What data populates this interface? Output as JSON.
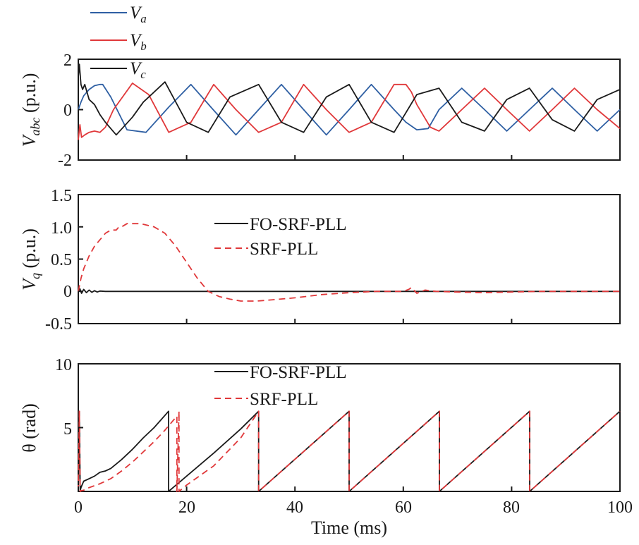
{
  "chart_data": [
    {
      "type": "line",
      "ylabel": "V_abc (p.u.)",
      "ylabel_main": "V",
      "ylabel_sub": "abc",
      "ylabel_unit": " (p.u.)",
      "xlim": [
        0,
        100
      ],
      "ylim": [
        -2,
        2
      ],
      "yticks": [
        "-2",
        "0",
        "2"
      ],
      "grid": false,
      "legend_position": "top-left",
      "series": [
        {
          "name": "V_a",
          "name_main": "V",
          "name_sub": "a",
          "color": "#2e5fa3",
          "x": [
            0,
            0.5,
            1,
            2,
            3,
            4,
            4.5,
            6,
            9,
            12.5,
            16.7,
            20.8,
            24.9,
            29.1,
            33.3,
            37.5,
            41.6,
            45.8,
            50,
            54.1,
            58.3,
            60.5,
            62.5,
            64.6,
            66.6,
            70.8,
            75,
            79.1,
            83.3,
            87.5,
            91.6,
            95.8,
            100
          ],
          "y": [
            0,
            0.3,
            0.55,
            0.8,
            0.95,
            1.0,
            1.0,
            0.5,
            -0.8,
            -0.9,
            0.1,
            1.0,
            0.0,
            -1.0,
            0.0,
            1.0,
            0.0,
            -1.0,
            0.0,
            1.0,
            0.0,
            -0.5,
            -0.8,
            -0.75,
            0.0,
            0.85,
            0.0,
            -0.85,
            0.0,
            0.85,
            0.0,
            -0.85,
            0.0
          ]
        },
        {
          "name": "V_b",
          "name_main": "V",
          "name_sub": "b",
          "color": "#e0383a",
          "x": [
            0,
            0.3,
            0.6,
            1.2,
            2,
            3,
            4,
            5,
            6.5,
            10,
            13,
            16.7,
            20.8,
            25,
            29.1,
            33.3,
            37.5,
            41.6,
            45.8,
            50,
            54.1,
            58.3,
            60.5,
            61.5,
            62.5,
            65,
            66.6,
            70.8,
            75,
            79.1,
            83.3,
            87.5,
            91.6,
            95.8,
            100
          ],
          "y": [
            -1.2,
            -0.6,
            -1.1,
            -1.0,
            -0.9,
            -0.85,
            -0.9,
            -0.7,
            0.0,
            1.05,
            0.6,
            -0.9,
            -0.5,
            1.0,
            0.0,
            -0.9,
            -0.5,
            1.0,
            0.0,
            -0.9,
            -0.5,
            1.0,
            1.0,
            0.7,
            0.2,
            -0.7,
            -0.85,
            0.0,
            0.85,
            0.0,
            -0.85,
            0.0,
            0.85,
            0.0,
            -0.75
          ]
        },
        {
          "name": "V_c",
          "name_main": "V",
          "name_sub": "c",
          "color": "#1a1a1a",
          "x": [
            0,
            0.2,
            0.5,
            0.8,
            1.2,
            2,
            3,
            4,
            5,
            7,
            10,
            12,
            16,
            20,
            24,
            28,
            33.3,
            37.5,
            41.6,
            45.8,
            50,
            54.1,
            58.3,
            62.5,
            66.6,
            70.8,
            75,
            79.1,
            83.3,
            87.5,
            91.6,
            95.8,
            100
          ],
          "y": [
            1.3,
            1.8,
            1.0,
            0.8,
            1.0,
            0.4,
            0.2,
            -0.2,
            -0.5,
            -1.0,
            -0.3,
            0.3,
            1.1,
            -0.5,
            -0.9,
            0.5,
            1.0,
            -0.5,
            -0.9,
            0.5,
            1.0,
            -0.5,
            -0.9,
            0.6,
            0.85,
            -0.5,
            -0.85,
            0.4,
            0.85,
            -0.4,
            -0.85,
            0.4,
            0.8
          ]
        }
      ]
    },
    {
      "type": "line",
      "ylabel": "V_q (p.u.)",
      "ylabel_main": "V",
      "ylabel_sub": "q",
      "ylabel_unit": " (p.u.)",
      "xlim": [
        0,
        100
      ],
      "ylim": [
        -0.5,
        1.5
      ],
      "yticks": [
        "-0.5",
        "0",
        "0.5",
        "1.0",
        "1.5"
      ],
      "grid": false,
      "legend_position": "top-center",
      "series": [
        {
          "name": "FO-SRF-PLL",
          "color": "#1a1a1a",
          "dash": "solid",
          "x": [
            0,
            0.3,
            0.6,
            1,
            1.5,
            2,
            2.5,
            3,
            3.5,
            4,
            5,
            6,
            100
          ],
          "y": [
            0,
            0.04,
            -0.03,
            0.03,
            -0.02,
            0.02,
            -0.015,
            0.01,
            -0.01,
            0.005,
            0,
            0,
            0
          ]
        },
        {
          "name": "SRF-PLL",
          "color": "#e0383a",
          "dash": "dashed",
          "x": [
            0,
            0.5,
            1,
            2,
            3,
            4,
            5,
            6,
            7,
            7.5,
            8,
            9,
            10,
            11,
            12,
            14,
            16,
            18,
            20,
            22,
            24,
            26,
            28,
            30,
            33,
            36,
            40,
            45,
            50,
            55,
            60,
            61,
            61.5,
            62.5,
            64,
            66,
            70,
            75,
            80,
            85,
            90,
            95,
            100
          ],
          "y": [
            0,
            0.2,
            0.35,
            0.55,
            0.7,
            0.8,
            0.9,
            0.95,
            0.95,
            1.0,
            1.0,
            1.05,
            1.05,
            1.05,
            1.04,
            1.0,
            0.9,
            0.7,
            0.45,
            0.2,
            0.0,
            -0.08,
            -0.12,
            -0.15,
            -0.15,
            -0.13,
            -0.1,
            -0.05,
            -0.02,
            0.0,
            0.0,
            0.03,
            0.06,
            -0.03,
            0.02,
            0.0,
            -0.01,
            -0.02,
            -0.01,
            0.0,
            0.0,
            0.0,
            0.0
          ]
        }
      ]
    },
    {
      "type": "line",
      "ylabel": "θ (rad)",
      "xlabel": "Time (ms)",
      "xlim": [
        0,
        100
      ],
      "ylim": [
        0,
        10
      ],
      "yticks": [
        "5",
        "10"
      ],
      "xticks": [
        "0",
        "20",
        "40",
        "60",
        "80",
        "100"
      ],
      "grid": false,
      "legend_position": "top-center",
      "series": [
        {
          "name": "FO-SRF-PLL",
          "color": "#1a1a1a",
          "dash": "solid",
          "x": [
            0,
            0.2,
            0.35,
            0.5,
            0.8,
            1,
            2,
            3,
            4,
            5,
            6,
            8,
            10,
            12,
            14,
            16.67,
            16.67,
            17.5,
            20,
            25,
            30,
            33.3,
            33.3,
            50,
            50,
            66.67,
            66.67,
            83.33,
            83.33,
            100
          ],
          "y": [
            0,
            6.28,
            0,
            0.3,
            0.6,
            0.8,
            1.0,
            1.2,
            1.5,
            1.6,
            1.8,
            2.5,
            3.3,
            4.2,
            5.0,
            6.28,
            0,
            0.3,
            1.2,
            3.0,
            4.9,
            6.28,
            0,
            6.28,
            0,
            6.28,
            0,
            6.28,
            0,
            6.28
          ]
        },
        {
          "name": "SRF-PLL",
          "color": "#e0383a",
          "dash": "dashed",
          "x": [
            0,
            0.2,
            0.35,
            0.5,
            1,
            2,
            4,
            6,
            8,
            10,
            12,
            14,
            16,
            18.2,
            18.2,
            18.6,
            18.6,
            20,
            25,
            30,
            33.3,
            33.3,
            50,
            50,
            66.67,
            66.67,
            83.33,
            83.33,
            100
          ],
          "y": [
            0,
            6.28,
            0,
            0.05,
            0.1,
            0.3,
            0.6,
            1.0,
            1.6,
            2.3,
            3.1,
            3.9,
            4.8,
            5.9,
            0,
            6.3,
            0,
            0.5,
            2.0,
            4.2,
            6.28,
            0,
            6.28,
            0,
            6.28,
            0,
            6.28,
            0,
            6.28
          ]
        }
      ]
    }
  ]
}
